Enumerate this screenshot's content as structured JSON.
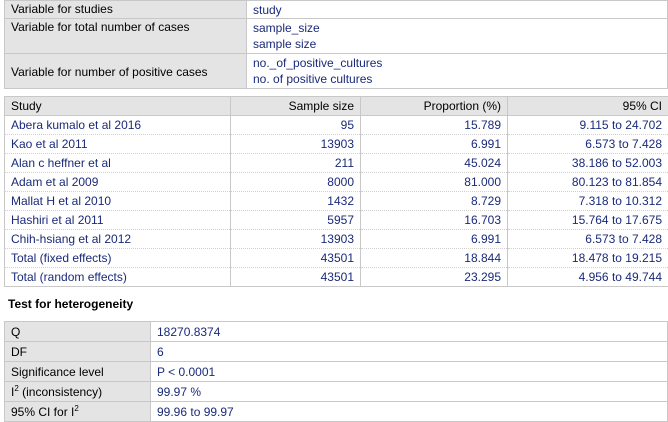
{
  "variables": [
    {
      "label": "Variable for studies",
      "values": [
        "study"
      ]
    },
    {
      "label": "Variable for total number of cases",
      "values": [
        "sample_size",
        "sample size"
      ]
    },
    {
      "label": "Variable for number of positive cases",
      "values": [
        "no._of_positive_cultures",
        "no. of positive cultures"
      ]
    }
  ],
  "results": {
    "headers": [
      "Study",
      "Sample size",
      "Proportion (%)",
      "95% CI"
    ],
    "rows": [
      {
        "study": "Abera kumalo et al 2016",
        "n": "95",
        "prop": "15.789",
        "ci": "9.115 to 24.702"
      },
      {
        "study": "Kao et al 2011",
        "n": "13903",
        "prop": "6.991",
        "ci": "6.573 to 7.428"
      },
      {
        "study": "Alan c heffner et al",
        "n": "211",
        "prop": "45.024",
        "ci": "38.186 to 52.003"
      },
      {
        "study": "Adam et al 2009",
        "n": "8000",
        "prop": "81.000",
        "ci": "80.123 to 81.854"
      },
      {
        "study": "Mallat H et al 2010",
        "n": "1432",
        "prop": "8.729",
        "ci": "7.318 to 10.312"
      },
      {
        "study": "Hashiri et al 2011",
        "n": "5957",
        "prop": "16.703",
        "ci": "15.764 to 17.675"
      },
      {
        "study": "Chih-hsiang et al 2012",
        "n": "13903",
        "prop": "6.991",
        "ci": "6.573 to 7.428"
      },
      {
        "study": "Total (fixed effects)",
        "n": "43501",
        "prop": "18.844",
        "ci": "18.478 to 19.215"
      },
      {
        "study": "Total (random effects)",
        "n": "43501",
        "prop": "23.295",
        "ci": "4.956 to 49.744"
      }
    ]
  },
  "heterogeneity": {
    "title": "Test for heterogeneity",
    "q_label": "Q",
    "q_value": "18270.8374",
    "df_label": "DF",
    "df_value": "6",
    "sig_label": "Significance level",
    "sig_value": "P < 0.0001",
    "i2_label_base": "I",
    "i2_label_sup": "2",
    "i2_label_rest": " (inconsistency)",
    "i2_value": "99.97 %",
    "ci_label_base": "95% CI for I",
    "ci_label_sup": "2",
    "ci_value": "99.96 to 99.97"
  }
}
